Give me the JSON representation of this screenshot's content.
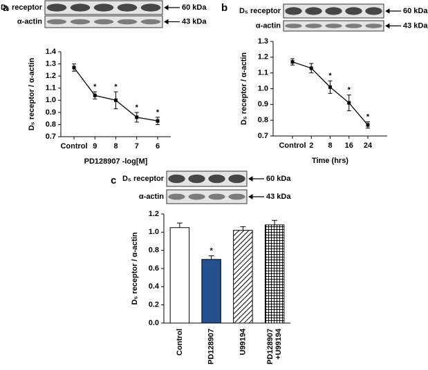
{
  "chart_data": [
    {
      "type": "line",
      "panel": "a",
      "blot": [
        {
          "label": "D₅ receptor",
          "size": "60 kDa"
        },
        {
          "label": "α-actin",
          "size": "43 kDa"
        }
      ],
      "xlabel": "PD128907 -log[M]",
      "ylabel": "D₅ receptor / α-actin",
      "categories": [
        "Control",
        "9",
        "8",
        "7",
        "6"
      ],
      "values": [
        1.27,
        1.04,
        1.0,
        0.86,
        0.83
      ],
      "errors": [
        0.03,
        0.03,
        0.07,
        0.04,
        0.03
      ],
      "significance": [
        null,
        "*",
        "*",
        "*",
        "*"
      ],
      "color": "#000000",
      "ylim": [
        0.7,
        1.4
      ],
      "yticks": [
        0.7,
        0.8,
        0.9,
        {
          "value": 1,
          "label": "1.0"
        },
        1.1,
        1.2,
        1.3,
        1.4
      ]
    },
    {
      "type": "line",
      "panel": "b",
      "blot": [
        {
          "label": "D₅ receptor",
          "size": "60 kDa"
        },
        {
          "label": "α-actin",
          "size": "43 kDa"
        }
      ],
      "xlabel": "Time (hrs)",
      "ylabel": "D₅ receptor / α-actin",
      "categories": [
        "Control",
        "2",
        "8",
        "16",
        "24"
      ],
      "values": [
        1.17,
        1.13,
        1.01,
        0.91,
        0.77
      ],
      "errors": [
        0.02,
        0.03,
        0.04,
        0.05,
        0.02
      ],
      "significance": [
        null,
        null,
        "*",
        "*",
        "*"
      ],
      "color": "#000000",
      "ylim": [
        0.7,
        1.3
      ],
      "yticks": [
        0.7,
        0.8,
        0.9,
        {
          "value": 1,
          "label": "1.0"
        },
        1.1,
        1.2,
        1.3
      ]
    },
    {
      "type": "bar",
      "panel": "c",
      "blot": [
        {
          "label": "D₅ receptor",
          "size": "60 kDa"
        },
        {
          "label": "α-actin",
          "size": "43 kDa"
        }
      ],
      "ylabel": "D₅ receptor / α-actin",
      "categories": [
        [
          "Control"
        ],
        [
          "PD128907"
        ],
        [
          "U99194"
        ],
        [
          "PD128907",
          "+U99194"
        ]
      ],
      "values": [
        1.05,
        0.7,
        1.02,
        1.08
      ],
      "errors": [
        0.05,
        0.04,
        0.04,
        0.05
      ],
      "significance": [
        null,
        "*",
        null,
        null
      ],
      "fills": [
        "solid-white",
        "solid-navy",
        "diagonal-hatch",
        "cross-hatch"
      ],
      "ylim": [
        0,
        1.2
      ],
      "yticks": [
        {
          "value": 0,
          "label": "0.0"
        },
        0.2,
        0.4,
        0.6,
        0.8,
        {
          "value": 1,
          "label": "1.0"
        },
        1.2
      ]
    }
  ]
}
